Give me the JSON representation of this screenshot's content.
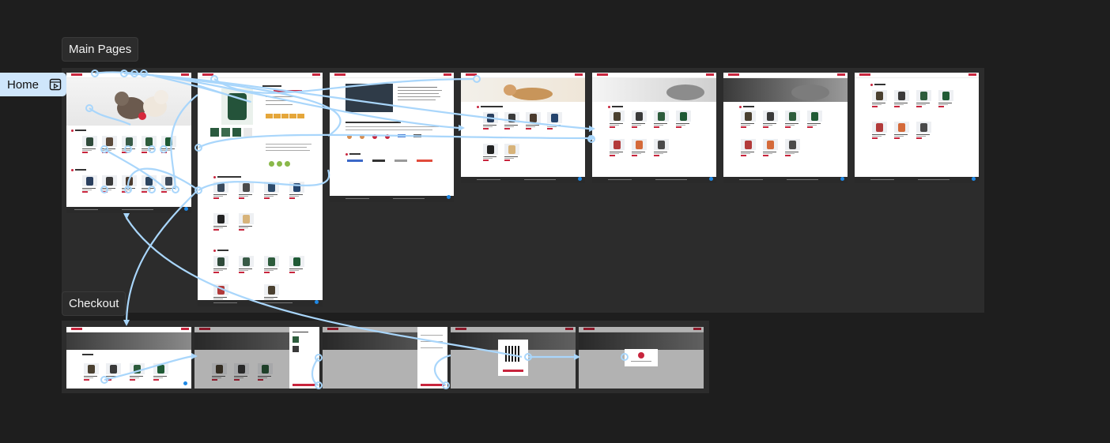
{
  "canvas": {
    "background": "#1e1e1e",
    "section_background": "#2c2c2c",
    "connector_color": "#a9d6fb",
    "accent_color": "#c8253d"
  },
  "sections": {
    "main": {
      "label": "Main Pages"
    },
    "checkout": {
      "label": "Checkout"
    }
  },
  "start_flow": {
    "label": "Home",
    "icon": "flow-start-icon"
  },
  "page_frames": {
    "main": [
      "home",
      "product-detail",
      "about",
      "products-for-dogs",
      "cat-products-category",
      "cat-products-listing",
      "cat-products-filtered"
    ],
    "checkout": [
      "checkout-product-list",
      "cart-drawer",
      "checkout-form",
      "qr-payment",
      "payment-success"
    ]
  }
}
